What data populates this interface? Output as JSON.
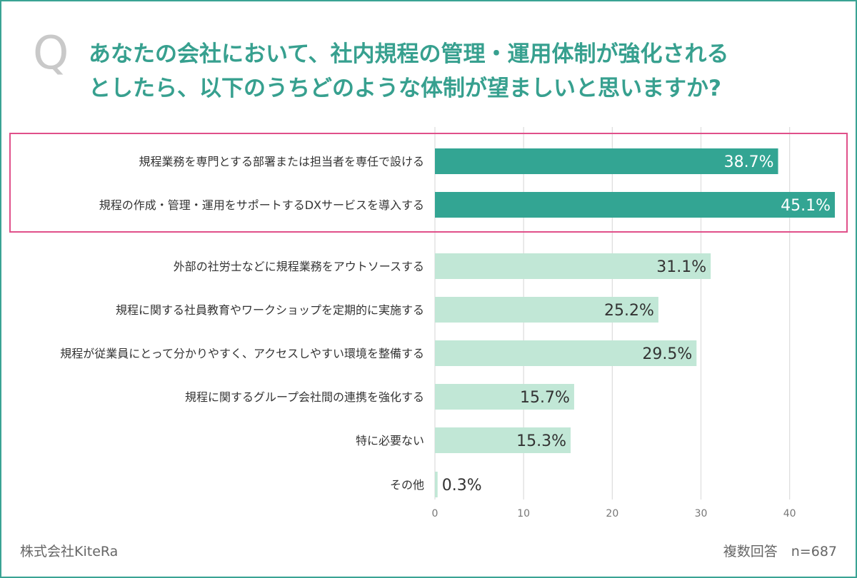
{
  "question": {
    "marker": "Q",
    "line1": "あなたの会社において、社内規程の管理・運用体制が強化される",
    "line2": "としたら、以下のうちどのような体制が望ましいと思いますか?"
  },
  "chart_data": {
    "type": "bar",
    "orientation": "horizontal",
    "categories": [
      "規程業務を専門とする部署または担当者を専任で設ける",
      "規程の作成・管理・運用をサポートするDXサービスを導入する",
      "外部の社労士などに規程業務をアウトソースする",
      "規程に関する社員教育やワークショップを定期的に実施する",
      "規程が従業員にとって分かりやすく、アクセスしやすい環境を整備する",
      "規程に関するグループ会社間の連携を強化する",
      "特に必要ない",
      "その他"
    ],
    "values": [
      38.7,
      45.1,
      31.1,
      25.2,
      29.5,
      15.7,
      15.3,
      0.3
    ],
    "value_labels": [
      "38.7%",
      "45.1%",
      "31.1%",
      "25.2%",
      "29.5%",
      "15.7%",
      "15.3%",
      "0.3%"
    ],
    "highlighted": [
      true,
      true,
      false,
      false,
      false,
      false,
      false,
      false
    ],
    "xticks": [
      "0",
      "10",
      "20",
      "30",
      "40"
    ],
    "xlim": [
      0,
      45.1
    ],
    "grid": true
  },
  "colors": {
    "highlight_bar": "#33a593",
    "normal_bar": "#c1e7d6",
    "highlight_box": "#e0508a",
    "grid": "#dcdcdc",
    "title": "#37a08f"
  },
  "footer": {
    "company": "株式会社KiteRa",
    "note": "複数回答　n=687"
  }
}
